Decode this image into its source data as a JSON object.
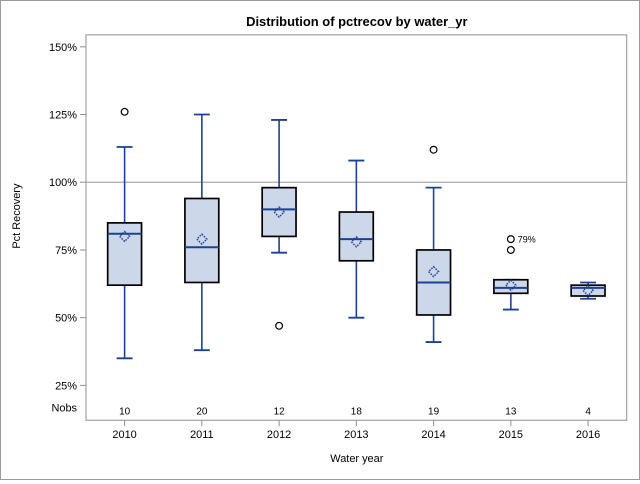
{
  "chart_data": {
    "type": "boxplot",
    "title": "Distribution of pctrecov by water_yr",
    "xlabel": "Water year",
    "ylabel": "Pct Recovery",
    "nobs_row_label": "Nobs",
    "legend": "none",
    "grid": false,
    "reference_line_y": 100,
    "y_axis": {
      "ticks": [
        150,
        125,
        100,
        75,
        50,
        25
      ],
      "tick_labels": [
        "150%",
        "125%",
        "100%",
        "75%",
        "50%",
        "25%"
      ],
      "range_shown": [
        25,
        150
      ],
      "unit": "percent"
    },
    "categories": [
      "2010",
      "2011",
      "2012",
      "2013",
      "2014",
      "2015",
      "2016"
    ],
    "nobs": [
      10,
      20,
      12,
      18,
      19,
      13,
      4
    ],
    "series": [
      {
        "category": "2010",
        "nobs": 10,
        "whisker_low": 35,
        "q1": 62,
        "median": 81,
        "mean": 80,
        "q3": 85,
        "whisker_high": 113,
        "outliers": [
          126
        ],
        "outlier_labels": []
      },
      {
        "category": "2011",
        "nobs": 20,
        "whisker_low": 38,
        "q1": 63,
        "median": 76,
        "mean": 79,
        "q3": 94,
        "whisker_high": 125,
        "outliers": [],
        "outlier_labels": []
      },
      {
        "category": "2012",
        "nobs": 12,
        "whisker_low": 74,
        "q1": 80,
        "median": 90,
        "mean": 89,
        "q3": 98,
        "whisker_high": 123,
        "outliers": [
          47
        ],
        "outlier_labels": []
      },
      {
        "category": "2013",
        "nobs": 18,
        "whisker_low": 50,
        "q1": 71,
        "median": 79,
        "mean": 78,
        "q3": 89,
        "whisker_high": 108,
        "outliers": [],
        "outlier_labels": []
      },
      {
        "category": "2014",
        "nobs": 19,
        "whisker_low": 41,
        "q1": 51,
        "median": 63,
        "mean": 67,
        "q3": 75,
        "whisker_high": 98,
        "outliers": [
          112
        ],
        "outlier_labels": []
      },
      {
        "category": "2015",
        "nobs": 13,
        "whisker_low": 53,
        "q1": 59,
        "median": 61,
        "mean": 62,
        "q3": 64,
        "whisker_high": 64,
        "outliers": [
          79,
          75
        ],
        "outlier_labels": [
          {
            "value": 79,
            "text": "79%"
          }
        ]
      },
      {
        "category": "2016",
        "nobs": 4,
        "whisker_low": 57,
        "q1": 58,
        "median": 61,
        "mean": 60,
        "q3": 62,
        "whisker_high": 63,
        "outliers": [],
        "outlier_labels": []
      }
    ],
    "colors": {
      "box_fill": "#ccd7ea",
      "box_border": "#000000",
      "line": "#1b4097",
      "outlier_stroke": "#000000",
      "outlier_fill": "#ffffff",
      "reference_line": "#aaaaaa",
      "axis": "#8f8f8f",
      "text": "#000000",
      "background": "#ffffff"
    }
  }
}
